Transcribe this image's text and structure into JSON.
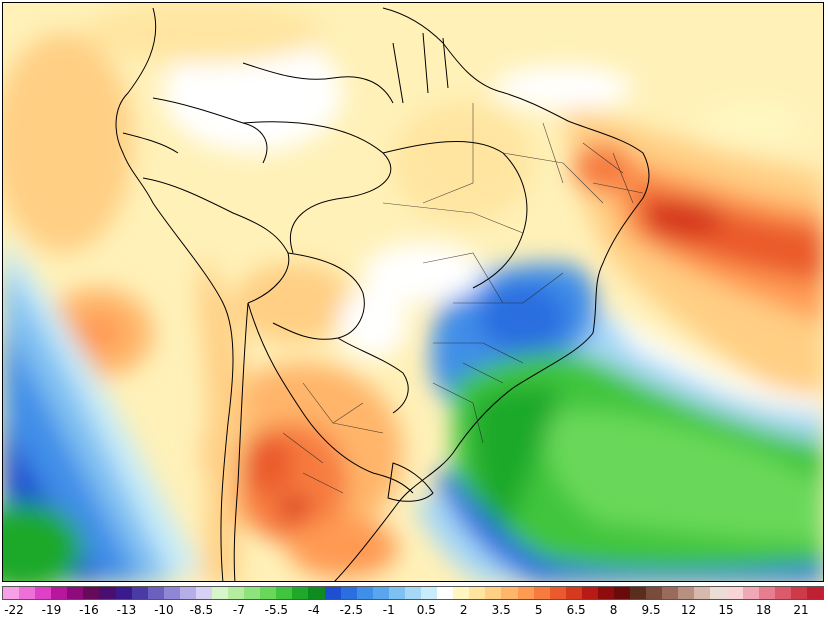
{
  "legend": {
    "colors": [
      "#f6a0e6",
      "#ee6fd8",
      "#df40c8",
      "#b9169e",
      "#8e0a7d",
      "#650b5a",
      "#4a0f6e",
      "#3a1a8c",
      "#4a3aa6",
      "#6b5fc0",
      "#8f86d6",
      "#b5aee8",
      "#d7d2f5",
      "#d6f5c8",
      "#b4eda0",
      "#8ee37a",
      "#69d85a",
      "#3fc53e",
      "#1ea92a",
      "#0f8c20",
      "#1e4fd0",
      "#2a6ee0",
      "#3f8ee8",
      "#5aa6ee",
      "#7fc0f2",
      "#a6d8f6",
      "#c8ecf9",
      "#ffffff",
      "#fff6c0",
      "#ffe5a0",
      "#ffcf84",
      "#ffb56a",
      "#ff9a52",
      "#f77b3f",
      "#ea5a2c",
      "#d6391e",
      "#b81a14",
      "#8e0c0c",
      "#6a0a0a",
      "#5a2e1e",
      "#7a4a3a",
      "#9a6a5a",
      "#b88f80",
      "#d6b8ac",
      "#ecdcd6",
      "#f6d4d8",
      "#f0a8b4",
      "#e77d8e",
      "#dc5a6c",
      "#cf3a4a",
      "#c02030"
    ],
    "labels": [
      "-22",
      "-19",
      "-16",
      "-13",
      "-10",
      "-8.5",
      "-7",
      "-5.5",
      "-4",
      "-2.5",
      "-1",
      "0.5",
      "2",
      "3.5",
      "5",
      "6.5",
      "8",
      "9.5",
      "12",
      "15",
      "18",
      "21"
    ]
  }
}
